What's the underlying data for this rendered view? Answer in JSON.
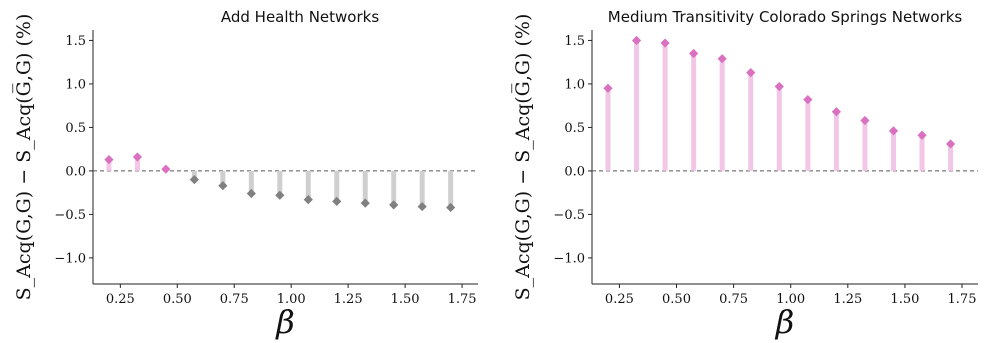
{
  "chart_data": [
    {
      "type": "lollipop",
      "title": "Add Health Networks",
      "xlabel": "β",
      "ylabel": "S_Acq(G,G) − S_Acq(G̅,G) (%)",
      "ylim": [
        -1.3,
        1.62
      ],
      "xlim": [
        0.13,
        1.82
      ],
      "xticks": [
        "0.25",
        "0.50",
        "0.75",
        "1.00",
        "1.25",
        "1.50",
        "1.75"
      ],
      "yticks": [
        "−1.0",
        "−0.5",
        "0.0",
        "0.5",
        "1.0",
        "1.5"
      ],
      "x": [
        0.2,
        0.325,
        0.45,
        0.575,
        0.7,
        0.825,
        0.95,
        1.075,
        1.2,
        1.325,
        1.45,
        1.575,
        1.7
      ],
      "values": [
        0.13,
        0.16,
        0.02,
        -0.1,
        -0.17,
        -0.26,
        -0.28,
        -0.33,
        -0.35,
        -0.37,
        -0.39,
        -0.41,
        -0.42
      ],
      "colors": {
        "positive_marker": "#da70c0",
        "positive_stem": "#f2c6e6",
        "negative_marker": "#808080",
        "negative_stem": "#cfcfcf",
        "zero_line": "#555555"
      }
    },
    {
      "type": "lollipop",
      "title": "Medium Transitivity Colorado Springs Networks",
      "xlabel": "β",
      "ylabel": "S_Acq(G,G) − S_Acq(G̅,G) (%)",
      "ylim": [
        -1.3,
        1.62
      ],
      "xlim": [
        0.13,
        1.82
      ],
      "xticks": [
        "0.25",
        "0.50",
        "0.75",
        "1.00",
        "1.25",
        "1.50",
        "1.75"
      ],
      "yticks": [
        "−1.0",
        "−0.5",
        "0.0",
        "0.5",
        "1.0",
        "1.5"
      ],
      "x": [
        0.2,
        0.325,
        0.45,
        0.575,
        0.7,
        0.825,
        0.95,
        1.075,
        1.2,
        1.325,
        1.45,
        1.575,
        1.7
      ],
      "values": [
        0.95,
        1.5,
        1.47,
        1.35,
        1.29,
        1.13,
        0.97,
        0.82,
        0.68,
        0.58,
        0.46,
        0.41,
        0.31
      ],
      "colors": {
        "positive_marker": "#da70c0",
        "positive_stem": "#f2c6e6",
        "negative_marker": "#808080",
        "negative_stem": "#cfcfcf",
        "zero_line": "#555555"
      }
    }
  ]
}
